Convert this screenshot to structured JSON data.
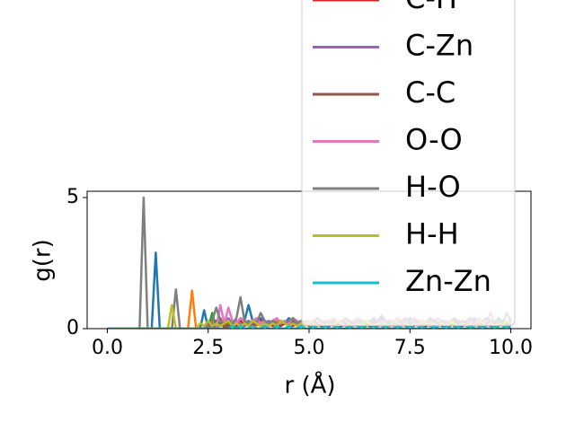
{
  "chart_data": {
    "type": "line",
    "x_label": "r (Å)",
    "y_label": "g(r)",
    "x": [
      0,
      0.1,
      0.2,
      0.3,
      0.4,
      0.5,
      0.6,
      0.7,
      0.8,
      0.9,
      1,
      1.1,
      1.2,
      1.3,
      1.4,
      1.5,
      1.6,
      1.7,
      1.8,
      1.9,
      2,
      2.1,
      2.2,
      2.3,
      2.4,
      2.5,
      2.6,
      2.7,
      2.8,
      2.9,
      3,
      3.1,
      3.2,
      3.3,
      3.4,
      3.5,
      3.6,
      3.7,
      3.8,
      3.9,
      4,
      4.1,
      4.2,
      4.3,
      4.4,
      4.5,
      4.6,
      4.7,
      4.8,
      4.9,
      5,
      5.1,
      5.2,
      5.3,
      5.4,
      5.5,
      5.6,
      5.7,
      5.8,
      5.9,
      6,
      6.1,
      6.2,
      6.3,
      6.4,
      6.5,
      6.6,
      6.7,
      6.8,
      6.9,
      7,
      7.1,
      7.2,
      7.3,
      7.4,
      7.5,
      7.6,
      7.7,
      7.8,
      7.9,
      8,
      8.1,
      8.2,
      8.3,
      8.4,
      8.5,
      8.6,
      8.7,
      8.8,
      8.9,
      9,
      9.1,
      9.2,
      9.3,
      9.4,
      9.5,
      9.6,
      9.7,
      9.8,
      9.9,
      10
    ],
    "xlim": [
      -0.5,
      10.5
    ],
    "ylim": [
      0,
      5.24
    ],
    "xticks": [
      {
        "value": 0,
        "label": "0.0"
      },
      2.5,
      {
        "value": 5,
        "label": "5.0"
      },
      7.5,
      {
        "value": 10,
        "label": "10.0"
      }
    ],
    "yticks": [
      0,
      5
    ],
    "series": [
      {
        "color": "#1f77b4",
        "values": [
          0,
          0,
          0,
          0,
          0,
          0,
          0,
          0,
          0,
          0,
          0,
          0,
          2.9,
          0,
          0,
          0,
          0,
          0,
          0,
          0,
          0,
          0,
          0,
          0,
          0.7,
          0,
          0.2,
          0.1,
          0.3,
          0.2,
          0.1,
          0.3,
          0.2,
          0.4,
          0.3,
          0.9,
          0.3,
          0.2,
          0.4,
          0.3,
          0.2,
          0.3,
          0.1,
          0.3,
          0.2,
          0.4,
          0.2,
          0.3,
          0.1,
          0.2,
          0.3,
          0.2,
          0.4,
          0.2,
          0.3,
          0.2,
          0.4,
          0.1,
          0.3,
          0.2,
          0.3,
          0.2,
          0.4,
          0.3,
          0.2,
          0.1,
          0.3,
          0.2,
          0.4,
          0.2,
          0.3,
          0.2,
          0.1,
          0.3,
          0.2,
          0.4,
          0.2,
          0.3,
          0.2,
          0.1,
          0.3,
          0.2,
          0.4,
          0.2,
          0.3,
          0.2,
          0.1,
          0.3,
          0.2,
          0.3,
          0.2,
          0.4,
          0.2,
          0.3,
          0.1,
          0.3,
          0.2,
          0.4,
          0.2,
          0.3,
          0.2
        ]
      },
      {
        "color": "#ff7f0e",
        "values": [
          0,
          0,
          0,
          0,
          0,
          0,
          0,
          0,
          0,
          0,
          0,
          0,
          0,
          0,
          0,
          0,
          0,
          0,
          0,
          0,
          0,
          1.45,
          0,
          0,
          0,
          0.2,
          0.1,
          0.3,
          0.2,
          0.1,
          0.2,
          0.3,
          0.1,
          0.2,
          0.3,
          0.1,
          0.2,
          0.1,
          0.3,
          0.2,
          0.1,
          0.2,
          0.3,
          0.1,
          0.2,
          0.1,
          0.3,
          0.2,
          0.1,
          0.2,
          0.3,
          0.1,
          0.2,
          0.1,
          0.2,
          0.3,
          0.1,
          0.2,
          0.1,
          0.3,
          0.2,
          0.1,
          0.2,
          0.3,
          0.1,
          0.2,
          0.1,
          0.2,
          0.3,
          0.1,
          0.2,
          0.1,
          0.3,
          0.2,
          0.1,
          0.2,
          0.3,
          0.1,
          0.2,
          0.1,
          0.2,
          0.3,
          0.1,
          0.2,
          0.1,
          0.3,
          0.2,
          0.1,
          0.2,
          0.3,
          0.1,
          0.2,
          0.1,
          0.2,
          0.3,
          0.1,
          0.2,
          0.1,
          0.3,
          0.2,
          0.1
        ]
      },
      {
        "color": "#2ca02c",
        "values": [
          0,
          0,
          0,
          0,
          0,
          0,
          0,
          0,
          0,
          0,
          0,
          0,
          0,
          0,
          0,
          0,
          0,
          0,
          0,
          0,
          0,
          0,
          0,
          0,
          0,
          0,
          0.6,
          0,
          0.2,
          0.1,
          0.3,
          0.1,
          0.2,
          0.1,
          0.2,
          0.3,
          0.1,
          0.2,
          0.1,
          0.2,
          0.1,
          0.3,
          0.2,
          0.1,
          0.2,
          0.1,
          0.2,
          0.3,
          0.1,
          0.2,
          0.1,
          0.2,
          0.1,
          0.3,
          0.2,
          0.1,
          0.2,
          0.1,
          0.2,
          0.3,
          0.1,
          0.2,
          0.1,
          0.2,
          0.1,
          0.3,
          0.2,
          0.1,
          0.2,
          0.1,
          0.2,
          0.3,
          0.1,
          0.2,
          0.1,
          0.2,
          0.1,
          0.3,
          0.2,
          0.1,
          0.2,
          0.1,
          0.2,
          0.3,
          0.1,
          0.2,
          0.1,
          0.2,
          0.1,
          0.3,
          0.2,
          0.1,
          0.2,
          0.1,
          0.2,
          0.3,
          0.1,
          0.2,
          0.1,
          0.2,
          0.1
        ]
      },
      {
        "name": "C-H",
        "color": "#d62728",
        "values": [
          0,
          0,
          0,
          0,
          0,
          0,
          0,
          0,
          0,
          0,
          0,
          0,
          0,
          0,
          0,
          0,
          0,
          0,
          0,
          0,
          0,
          0,
          0,
          0,
          0,
          0,
          0,
          0,
          0.4,
          0,
          0.1,
          0.2,
          0.1,
          0.3,
          0.1,
          0.2,
          0.1,
          0.2,
          0.3,
          0.1,
          0.2,
          0.1,
          0.2,
          0.1,
          0.3,
          0.2,
          0.1,
          0.2,
          0.1,
          0.2,
          0.3,
          0.1,
          0.2,
          0.1,
          0.2,
          0.1,
          0.3,
          0.2,
          0.1,
          0.2,
          0.1,
          0.2,
          0.3,
          0.1,
          0.2,
          0.1,
          0.2,
          0.1,
          0.3,
          0.2,
          0.1,
          0.2,
          0.1,
          0.2,
          0.3,
          0.1,
          0.2,
          0.1,
          0.2,
          0.1,
          0.3,
          0.2,
          0.1,
          0.2,
          0.1,
          0.2,
          0.3,
          0.1,
          0.2,
          0.1,
          0.2,
          0.1,
          0.3,
          0.2,
          0.1,
          0.2,
          0.1,
          0.2,
          0.3,
          0.1,
          0.2
        ]
      },
      {
        "name": "C-Zn",
        "color": "#9467bd",
        "values": [
          0,
          0,
          0,
          0,
          0,
          0,
          0,
          0,
          0,
          0,
          0,
          0,
          0,
          0,
          0,
          0,
          0,
          0,
          0,
          0,
          0,
          0,
          0,
          0,
          0,
          0.3,
          0.1,
          0.2,
          0.3,
          0.2,
          0.4,
          0.2,
          0.3,
          0.2,
          0.1,
          0.3,
          0.2,
          0.3,
          0.1,
          0.2,
          0.3,
          0.2,
          0.1,
          0.3,
          0.2,
          0.3,
          0.2,
          0.1,
          0.3,
          0.2,
          0.3,
          0.2,
          0.1,
          0.3,
          0.2,
          0.3,
          0.2,
          0.1,
          0.3,
          0.2,
          0.3,
          0.2,
          0.1,
          0.3,
          0.2,
          0.3,
          0.2,
          0.1,
          0.3,
          0.2,
          0.3,
          0.2,
          0.1,
          0.3,
          0.2,
          0.3,
          0.2,
          0.1,
          0.3,
          0.2,
          0.3,
          0.2,
          0.1,
          0.3,
          0.2,
          0.3,
          0.2,
          0.1,
          0.3,
          0.2,
          0.3,
          0.2,
          0.1,
          0.3,
          0.2,
          0.3,
          0.2,
          0.1,
          0.3,
          0.2,
          0.3
        ]
      },
      {
        "name": "C-C",
        "color": "#8c564b",
        "values": [
          0,
          0,
          0,
          0,
          0,
          0,
          0,
          0,
          0,
          0,
          0,
          0,
          0,
          0,
          0,
          0,
          0,
          0,
          0,
          0,
          0,
          0,
          0,
          0,
          0,
          0,
          0,
          0.3,
          0.1,
          0.2,
          0.1,
          0.3,
          0.2,
          0.1,
          0.2,
          0.1,
          0.3,
          0.2,
          0.1,
          0.2,
          0.1,
          0.3,
          0.2,
          0.1,
          0.2,
          0.1,
          0.3,
          0.2,
          0.1,
          0.2,
          0.1,
          0.3,
          0.2,
          0.1,
          0.2,
          0.1,
          0.3,
          0.2,
          0.1,
          0.2,
          0.1,
          0.3,
          0.2,
          0.1,
          0.2,
          0.1,
          0.3,
          0.2,
          0.1,
          0.2,
          0.1,
          0.3,
          0.2,
          0.1,
          0.2,
          0.1,
          0.3,
          0.2,
          0.1,
          0.2,
          0.1,
          0.3,
          0.2,
          0.1,
          0.2,
          0.1,
          0.3,
          0.2,
          0.1,
          0.2,
          0.1,
          0.3,
          0.2,
          0.1,
          0.2,
          0.1,
          0.3,
          0.2,
          0.1,
          0.2,
          0.1
        ]
      },
      {
        "name": "O-O",
        "color": "#e377c2",
        "values": [
          0,
          0,
          0,
          0,
          0,
          0,
          0,
          0,
          0,
          0,
          0,
          0,
          0,
          0,
          0,
          0,
          0,
          0,
          0,
          0,
          0,
          0,
          0,
          0,
          0,
          0,
          0,
          0,
          0.9,
          0.2,
          0.8,
          0.3,
          0.2,
          0.4,
          0.3,
          0.2,
          0.3,
          0.4,
          0.2,
          0.3,
          0.2,
          0.3,
          0.4,
          0.2,
          0.3,
          0.2,
          0.4,
          0.3,
          0.2,
          0.3,
          0.2,
          0.3,
          0.4,
          0.2,
          0.3,
          0.2,
          0.4,
          0.3,
          0.2,
          0.3,
          0.2,
          0.3,
          0.4,
          0.2,
          0.3,
          0.2,
          0.4,
          0.3,
          0.2,
          0.3,
          0.2,
          0.3,
          0.4,
          0.2,
          0.3,
          0.2,
          0.4,
          0.3,
          0.2,
          0.3,
          0.2,
          0.3,
          0.4,
          0.2,
          0.3,
          0.2,
          0.4,
          0.3,
          0.2,
          0.3,
          0.2,
          0.3,
          0.4,
          0.2,
          0.3,
          0.6,
          0.2,
          0.3,
          0.2,
          0.3,
          0.2
        ]
      },
      {
        "name": "H-O",
        "color": "#7f7f7f",
        "values": [
          0,
          0,
          0,
          0,
          0,
          0,
          0,
          0,
          0,
          5.0,
          0,
          0,
          0,
          0,
          0,
          0,
          0,
          1.5,
          0,
          0,
          0,
          0,
          0,
          0,
          0,
          0,
          0.3,
          0.8,
          0.3,
          0.2,
          0.3,
          0.2,
          0.4,
          1.2,
          0.3,
          0.2,
          0.3,
          0.2,
          0.6,
          0.3,
          0.2,
          0.3,
          0.2,
          0.3,
          0.2,
          0.3,
          0.4,
          0.2,
          0.3,
          0.2,
          0.3,
          0.2,
          0.4,
          0.3,
          0.2,
          0.3,
          0.2,
          0.3,
          0.2,
          0.4,
          0.3,
          0.2,
          0.3,
          0.2,
          0.3,
          0.2,
          0.4,
          0.3,
          0.5,
          0.3,
          0.2,
          0.3,
          0.2,
          0.3,
          0.4,
          0.2,
          0.3,
          0.2,
          0.3,
          0.2,
          0.4,
          0.3,
          0.2,
          0.3,
          0.2,
          0.3,
          0.4,
          0.3,
          0.2,
          0.3,
          0.4,
          0.3,
          0.2,
          0.3,
          0.4,
          0.3,
          0.2,
          0.3,
          0.2,
          0.6,
          0.3
        ]
      },
      {
        "name": "H-H",
        "color": "#bcbd22",
        "values": [
          0,
          0,
          0,
          0,
          0,
          0,
          0,
          0,
          0,
          0,
          0,
          0,
          0,
          0,
          0,
          0,
          0.9,
          0,
          0,
          0,
          0,
          0,
          0,
          0.2,
          0.1,
          0.3,
          0.1,
          0.2,
          0.1,
          0.2,
          0.3,
          0.1,
          0.2,
          0.1,
          0.2,
          0.1,
          0.3,
          0.2,
          0.1,
          0.2,
          0.1,
          0.2,
          0.1,
          0.3,
          0.2,
          0.1,
          0.2,
          0.1,
          0.2,
          0.1,
          0.3,
          0.2,
          0.1,
          0.2,
          0.1,
          0.2,
          0.1,
          0.3,
          0.2,
          0.1,
          0.2,
          0.1,
          0.2,
          0.1,
          0.3,
          0.2,
          0.1,
          0.2,
          0.1,
          0.2,
          0.1,
          0.3,
          0.2,
          0.1,
          0.2,
          0.1,
          0.2,
          0.1,
          0.3,
          0.2,
          0.1,
          0.2,
          0.1,
          0.2,
          0.1,
          0.3,
          0.2,
          0.1,
          0.2,
          0.1,
          0.2,
          0.1,
          0.3,
          0.2,
          0.1,
          0.2,
          0.1,
          0.2,
          0.1,
          0.3,
          0.2
        ]
      },
      {
        "name": "Zn-Zn",
        "color": "#17becf",
        "values": [
          0,
          0,
          0,
          0,
          0,
          0,
          0,
          0,
          0,
          0,
          0,
          0,
          0,
          0,
          0,
          0,
          0,
          0,
          0,
          0,
          0,
          0,
          0,
          0,
          0,
          0,
          0,
          0,
          0,
          0,
          0,
          0.1,
          0,
          0.1,
          0,
          0,
          0.1,
          0,
          0,
          0.1,
          0,
          0,
          0.1,
          0,
          0,
          0.1,
          0,
          0,
          0.1,
          0,
          0,
          0.1,
          0,
          0,
          0.1,
          0,
          0,
          0.1,
          0,
          0,
          0.1,
          0,
          0,
          0.1,
          0,
          0,
          0.1,
          0,
          0,
          0.1,
          0,
          0,
          0.1,
          0,
          0,
          0.1,
          0,
          0,
          0.1,
          0,
          0,
          0.1,
          0,
          0,
          0.1,
          0,
          0,
          0.1,
          0,
          0,
          0.1,
          0,
          0,
          0.1,
          0,
          0,
          0.1,
          0,
          0,
          0.1,
          0
        ]
      }
    ]
  }
}
